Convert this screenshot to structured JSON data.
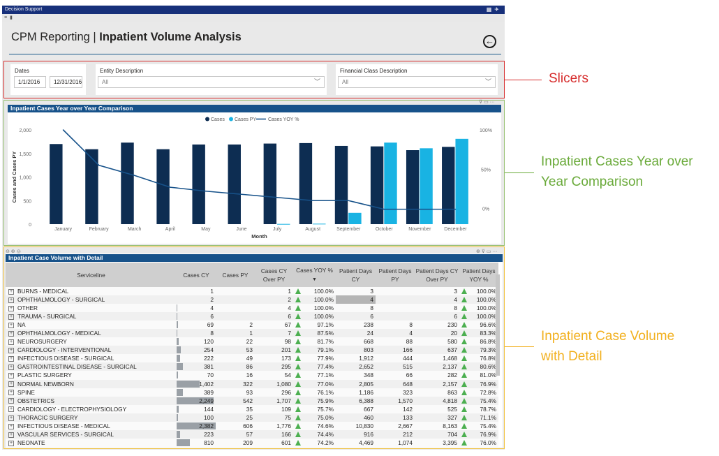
{
  "app": {
    "title": "Decision Support"
  },
  "header": {
    "title_prefix": "CPM Reporting",
    "title_sep": " | ",
    "title_main": "Inpatient Volume Analysis"
  },
  "slicers": {
    "dates": {
      "label": "Dates",
      "start": "1/1/2016",
      "end": "12/31/2016"
    },
    "entity": {
      "label": "Entity Description",
      "value": "All"
    },
    "financial": {
      "label": "Financial Class Description",
      "value": "All"
    }
  },
  "annotations": {
    "slicers": "Slicers",
    "chart_line1": "Inpatient Cases Year over",
    "chart_line2": "Year Comparison",
    "table_line1": "Inpatient Case Volume",
    "table_line2": "with Detail"
  },
  "colors": {
    "cases": "#0d2d52",
    "cases_py": "#19b3e3",
    "yoy": "#17528a",
    "up_arrow": "#4caf50",
    "annot_red": "#d62b2b",
    "annot_green": "#6aaa3a",
    "annot_yellow": "#f2b01e"
  },
  "chart_visual": {
    "header": "Inpatient Cases Year over Year Comparison"
  },
  "chart_data": {
    "type": "bar",
    "title": "Inpatient Cases Year over Year Comparison",
    "xlabel": "Month",
    "ylabel": "Cases and Cases PY",
    "categories": [
      "January",
      "February",
      "March",
      "April",
      "May",
      "June",
      "July",
      "August",
      "September",
      "October",
      "November",
      "December"
    ],
    "series": [
      {
        "name": "Cases",
        "kind": "bar",
        "axis": "left",
        "values": [
          1700,
          1590,
          1730,
          1590,
          1690,
          1690,
          1710,
          1720,
          1660,
          1650,
          1570,
          1640
        ]
      },
      {
        "name": "Cases PY",
        "kind": "bar",
        "axis": "left",
        "values": [
          0,
          0,
          0,
          0,
          0,
          0,
          5,
          10,
          240,
          1730,
          1610,
          1810
        ]
      },
      {
        "name": "Cases YOY %",
        "kind": "line",
        "axis": "right",
        "values": [
          100,
          55,
          42,
          27,
          22,
          18,
          14,
          10,
          10,
          -1,
          -1,
          -1
        ]
      }
    ],
    "ylim": [
      0,
      2000
    ],
    "yticks": [
      "0",
      "500",
      "1,000",
      "1,500",
      "2,000"
    ],
    "y2lim": [
      -20,
      100
    ],
    "y2ticks": [
      "0%",
      "50%",
      "100%"
    ],
    "legend": "top-center",
    "grid": false
  },
  "table": {
    "header": "Inpatient Case Volume with Detail",
    "columns": [
      "Serviceline",
      "Cases CY",
      "Cases PY",
      "Cases CY Over PY",
      "Cases YOY %",
      "Patient Days CY",
      "Patient Days PY",
      "Patient Days CY Over PY",
      "Patient Days YOY %"
    ],
    "sort_indicator": "▼",
    "rows": [
      {
        "name": "BURNS - MEDICAL",
        "cy": "1",
        "py": "",
        "over": "1",
        "yoy": "100.0%",
        "pdcy": "3",
        "pdpy": "",
        "pdover": "3",
        "pdyoy": "100.0%"
      },
      {
        "name": "OPHTHALMOLOGY - SURGICAL",
        "cy": "2",
        "py": "",
        "over": "2",
        "yoy": "100.0%",
        "pdcy": "4",
        "pdpy": "",
        "pdover": "4",
        "pdyoy": "100.0%"
      },
      {
        "name": "OTHER",
        "cy": "4",
        "py": "",
        "over": "4",
        "yoy": "100.0%",
        "pdcy": "8",
        "pdpy": "",
        "pdover": "8",
        "pdyoy": "100.0%"
      },
      {
        "name": "TRAUMA - SURGICAL",
        "cy": "6",
        "py": "",
        "over": "6",
        "yoy": "100.0%",
        "pdcy": "6",
        "pdpy": "",
        "pdover": "6",
        "pdyoy": "100.0%"
      },
      {
        "name": "NA",
        "cy": "69",
        "py": "2",
        "over": "67",
        "yoy": "97.1%",
        "pdcy": "238",
        "pdpy": "8",
        "pdover": "230",
        "pdyoy": "96.6%"
      },
      {
        "name": "OPHTHALMOLOGY - MEDICAL",
        "cy": "8",
        "py": "1",
        "over": "7",
        "yoy": "87.5%",
        "pdcy": "24",
        "pdpy": "4",
        "pdover": "20",
        "pdyoy": "83.3%"
      },
      {
        "name": "NEUROSURGERY",
        "cy": "120",
        "py": "22",
        "over": "98",
        "yoy": "81.7%",
        "pdcy": "668",
        "pdpy": "88",
        "pdover": "580",
        "pdyoy": "86.8%"
      },
      {
        "name": "CARDIOLOGY - INTERVENTIONAL",
        "cy": "254",
        "py": "53",
        "over": "201",
        "yoy": "79.1%",
        "pdcy": "803",
        "pdpy": "166",
        "pdover": "637",
        "pdyoy": "79.3%"
      },
      {
        "name": "INFECTIOUS DISEASE - SURGICAL",
        "cy": "222",
        "py": "49",
        "over": "173",
        "yoy": "77.9%",
        "pdcy": "1,912",
        "pdpy": "444",
        "pdover": "1,468",
        "pdyoy": "76.8%"
      },
      {
        "name": "GASTROINTESTINAL DISEASE - SURGICAL",
        "cy": "381",
        "py": "86",
        "over": "295",
        "yoy": "77.4%",
        "pdcy": "2,652",
        "pdpy": "515",
        "pdover": "2,137",
        "pdyoy": "80.6%"
      },
      {
        "name": "PLASTIC SURGERY",
        "cy": "70",
        "py": "16",
        "over": "54",
        "yoy": "77.1%",
        "pdcy": "348",
        "pdpy": "66",
        "pdover": "282",
        "pdyoy": "81.0%"
      },
      {
        "name": "NORMAL NEWBORN",
        "cy": "1,402",
        "py": "322",
        "over": "1,080",
        "yoy": "77.0%",
        "pdcy": "2,805",
        "pdpy": "648",
        "pdover": "2,157",
        "pdyoy": "76.9%"
      },
      {
        "name": "SPINE",
        "cy": "389",
        "py": "93",
        "over": "296",
        "yoy": "76.1%",
        "pdcy": "1,186",
        "pdpy": "323",
        "pdover": "863",
        "pdyoy": "72.8%"
      },
      {
        "name": "OBSTETRICS",
        "cy": "2,249",
        "py": "542",
        "over": "1,707",
        "yoy": "75.9%",
        "pdcy": "6,388",
        "pdpy": "1,570",
        "pdover": "4,818",
        "pdyoy": "75.4%"
      },
      {
        "name": "CARDIOLOGY - ELECTROPHYSIOLOGY",
        "cy": "144",
        "py": "35",
        "over": "109",
        "yoy": "75.7%",
        "pdcy": "667",
        "pdpy": "142",
        "pdover": "525",
        "pdyoy": "78.7%"
      },
      {
        "name": "THORACIC SURGERY",
        "cy": "100",
        "py": "25",
        "over": "75",
        "yoy": "75.0%",
        "pdcy": "460",
        "pdpy": "133",
        "pdover": "327",
        "pdyoy": "71.1%"
      },
      {
        "name": "INFECTIOUS DISEASE - MEDICAL",
        "cy": "2,382",
        "py": "606",
        "over": "1,776",
        "yoy": "74.6%",
        "pdcy": "10,830",
        "pdpy": "2,667",
        "pdover": "8,163",
        "pdyoy": "75.4%"
      },
      {
        "name": "VASCULAR SERVICES - SURGICAL",
        "cy": "223",
        "py": "57",
        "over": "166",
        "yoy": "74.4%",
        "pdcy": "916",
        "pdpy": "212",
        "pdover": "704",
        "pdyoy": "76.9%"
      },
      {
        "name": "NEONATE",
        "cy": "810",
        "py": "209",
        "over": "601",
        "yoy": "74.2%",
        "pdcy": "4,469",
        "pdpy": "1,074",
        "pdover": "3,395",
        "pdyoy": "76.0%"
      }
    ]
  }
}
